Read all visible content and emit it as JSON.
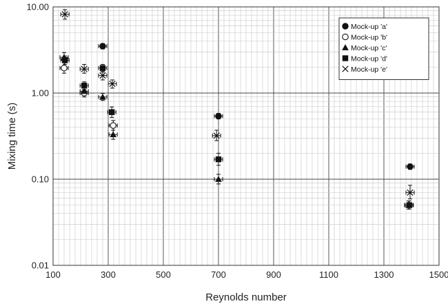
{
  "chart_data": {
    "type": "scatter",
    "title": "",
    "xlabel": "Reynolds number",
    "ylabel": "Mixing time (s)",
    "xlim": [
      100,
      1500
    ],
    "ylim": [
      0.01,
      10
    ],
    "x_scale": "linear",
    "y_scale": "log",
    "x_ticks": [
      "100",
      "300",
      "500",
      "700",
      "900",
      "1100",
      "1300",
      "1500"
    ],
    "y_ticks": [
      "0.01",
      "0.10",
      "1.00",
      "10.00"
    ],
    "grid": true,
    "legend_position": "top-right",
    "error_bars": true,
    "series": [
      {
        "name": "Mock-up 'a'",
        "marker": "filled-circle",
        "points": [
          {
            "x": 280,
            "y": 3.5,
            "xerr": 15,
            "yerr_low": 3.25,
            "yerr_high": 3.75
          },
          {
            "x": 700,
            "y": 0.54,
            "xerr": 15,
            "yerr_low": 0.5,
            "yerr_high": 0.58
          },
          {
            "x": 1395,
            "y": 0.14,
            "xerr": 15,
            "yerr_low": 0.13,
            "yerr_high": 0.15
          }
        ]
      },
      {
        "name": "Mock-up 'b'",
        "marker": "open-circle",
        "points": [
          {
            "x": 140,
            "y": 1.95,
            "xerr": 15,
            "yerr_low": 1.7,
            "yerr_high": 2.25
          },
          {
            "x": 213,
            "y": 1.0,
            "xerr": 15,
            "yerr_low": 0.9,
            "yerr_high": 1.1
          },
          {
            "x": 318,
            "y": 0.42,
            "xerr": 15,
            "yerr_low": 0.37,
            "yerr_high": 0.48
          }
        ]
      },
      {
        "name": "Mock-up 'c'",
        "marker": "filled-triangle",
        "points": [
          {
            "x": 140,
            "y": 2.6,
            "xerr": 15,
            "yerr_low": 2.3,
            "yerr_high": 2.95
          },
          {
            "x": 213,
            "y": 1.05,
            "xerr": 15,
            "yerr_low": 0.95,
            "yerr_high": 1.17
          },
          {
            "x": 280,
            "y": 0.9,
            "xerr": 15,
            "yerr_low": 0.82,
            "yerr_high": 0.99
          },
          {
            "x": 318,
            "y": 0.33,
            "xerr": 15,
            "yerr_low": 0.29,
            "yerr_high": 0.37
          },
          {
            "x": 700,
            "y": 0.1,
            "xerr": 15,
            "yerr_low": 0.088,
            "yerr_high": 0.114
          },
          {
            "x": 1390,
            "y": 0.05,
            "xerr": 15,
            "yerr_low": 0.045,
            "yerr_high": 0.056
          }
        ]
      },
      {
        "name": "Mock-up 'd'",
        "marker": "filled-square",
        "points": [
          {
            "x": 143,
            "y": 2.4,
            "xerr": 15,
            "yerr_low": 2.15,
            "yerr_high": 2.7
          },
          {
            "x": 213,
            "y": 1.22,
            "xerr": 15,
            "yerr_low": 1.1,
            "yerr_high": 1.35
          },
          {
            "x": 280,
            "y": 1.95,
            "xerr": 15,
            "yerr_low": 1.75,
            "yerr_high": 2.15
          },
          {
            "x": 313,
            "y": 0.6,
            "xerr": 15,
            "yerr_low": 0.52,
            "yerr_high": 0.69
          },
          {
            "x": 700,
            "y": 0.17,
            "xerr": 15,
            "yerr_low": 0.145,
            "yerr_high": 0.2
          },
          {
            "x": 1392,
            "y": 0.05,
            "xerr": 15,
            "yerr_low": 0.045,
            "yerr_high": 0.056
          }
        ]
      },
      {
        "name": "Mock-up 'e'",
        "marker": "cross",
        "points": [
          {
            "x": 143,
            "y": 8.2,
            "xerr": 15,
            "yerr_low": 7.2,
            "yerr_high": 9.3
          },
          {
            "x": 213,
            "y": 1.9,
            "xerr": 15,
            "yerr_low": 1.7,
            "yerr_high": 2.15
          },
          {
            "x": 280,
            "y": 1.6,
            "xerr": 15,
            "yerr_low": 1.42,
            "yerr_high": 1.8
          },
          {
            "x": 315,
            "y": 1.28,
            "xerr": 15,
            "yerr_low": 1.14,
            "yerr_high": 1.42
          },
          {
            "x": 693,
            "y": 0.32,
            "xerr": 15,
            "yerr_low": 0.28,
            "yerr_high": 0.37
          },
          {
            "x": 1395,
            "y": 0.07,
            "xerr": 15,
            "yerr_low": 0.059,
            "yerr_high": 0.085
          }
        ]
      }
    ]
  }
}
